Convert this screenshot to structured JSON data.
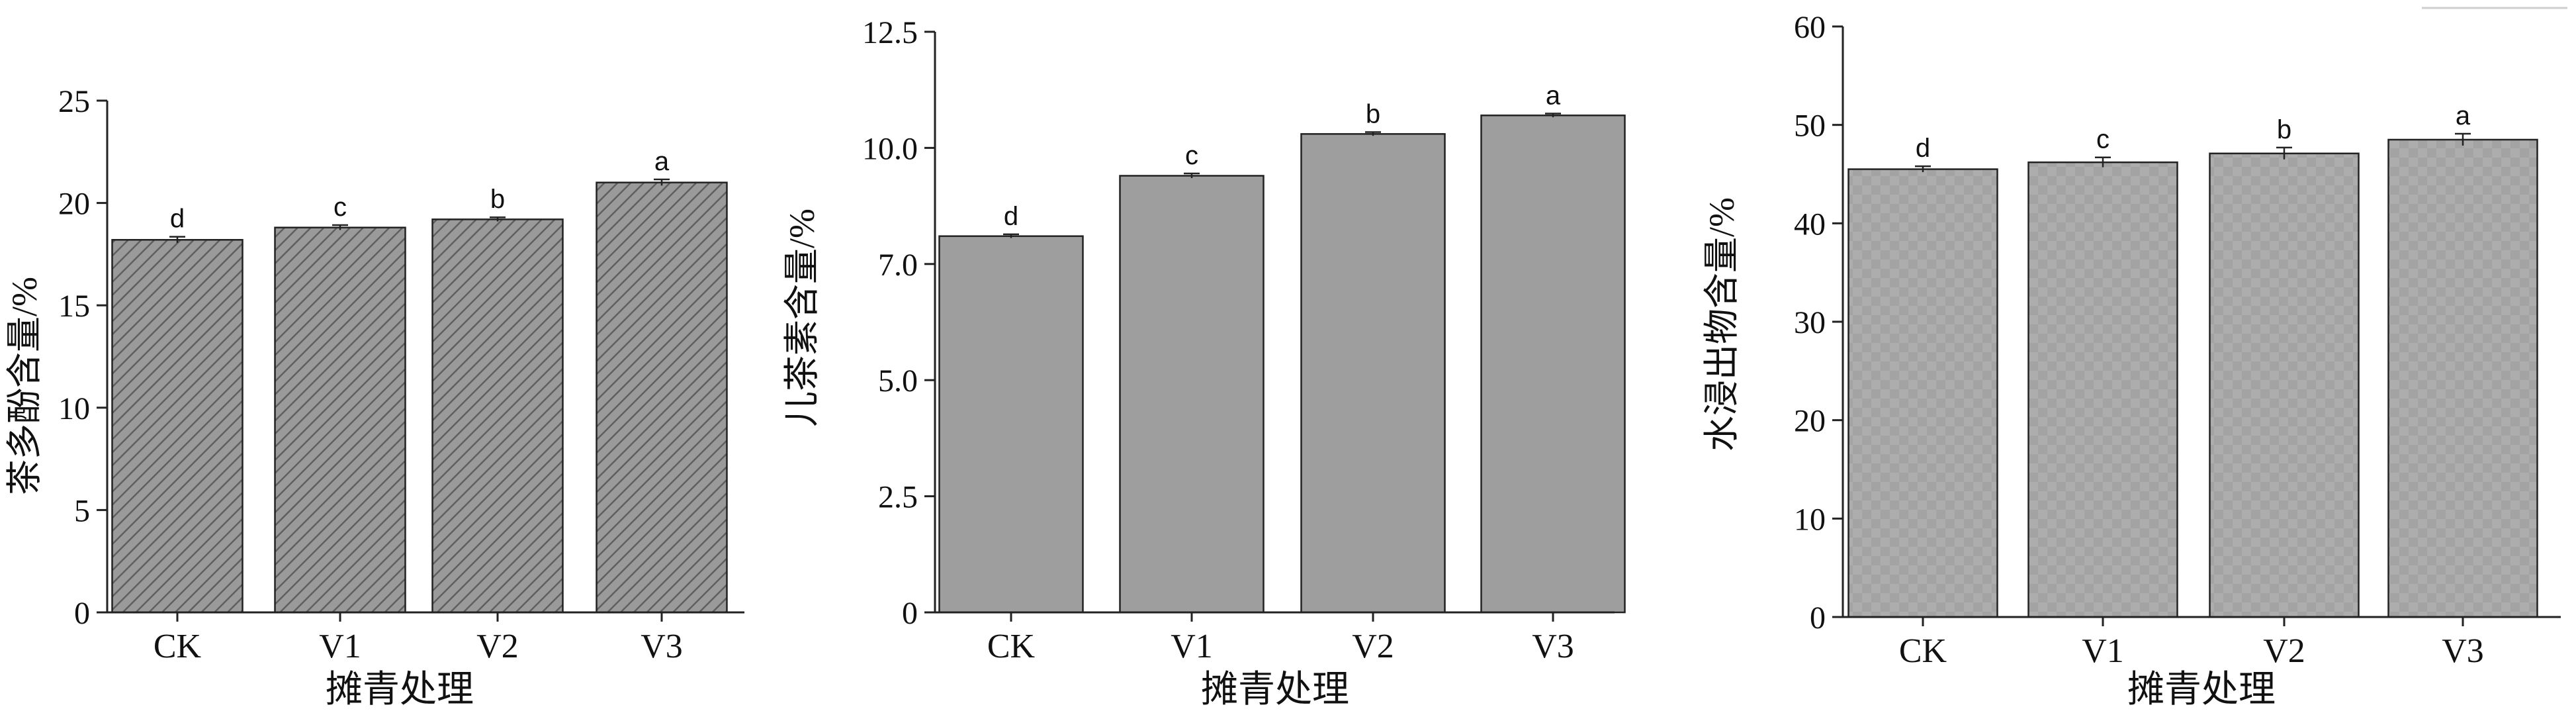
{
  "chart_data": [
    {
      "type": "bar",
      "title": "",
      "xlabel": "摊青处理",
      "ylabel": "茶多酚含量/%",
      "categories": [
        "CK",
        "V1",
        "V2",
        "V3"
      ],
      "values": [
        18.2,
        18.8,
        19.2,
        21.0
      ],
      "errors": [
        0.15,
        0.12,
        0.1,
        0.15
      ],
      "significance": [
        "d",
        "c",
        "b",
        "a"
      ],
      "ylim": [
        0,
        25
      ],
      "yticks": [
        "0",
        "5",
        "10",
        "15",
        "20",
        "25"
      ],
      "fill": "hatched",
      "colors": {
        "bar": "#9a9a9a",
        "hatch": "#5f5f5f"
      }
    },
    {
      "type": "bar",
      "title": "",
      "xlabel": "摊青处理",
      "ylabel": "儿茶素含量/%",
      "categories": [
        "CK",
        "V1",
        "V2",
        "V3"
      ],
      "values": [
        8.1,
        9.4,
        10.3,
        10.7
      ],
      "errors": [
        0.04,
        0.05,
        0.04,
        0.04
      ],
      "significance": [
        "d",
        "c",
        "b",
        "a"
      ],
      "ylim": [
        0,
        12.5
      ],
      "yticks": [
        "0",
        "2.5",
        "5.0",
        "7.0",
        "10.0",
        "12.5"
      ],
      "fill": "solid",
      "colors": {
        "bar": "#9e9e9e"
      }
    },
    {
      "type": "bar",
      "title": "",
      "xlabel": "摊青处理",
      "ylabel": "水浸出物含量/%",
      "categories": [
        "CK",
        "V1",
        "V2",
        "V3"
      ],
      "values": [
        45.5,
        46.2,
        47.1,
        48.5
      ],
      "errors": [
        0.3,
        0.5,
        0.6,
        0.6
      ],
      "significance": [
        "d",
        "c",
        "b",
        "a"
      ],
      "ylim": [
        0,
        60
      ],
      "yticks": [
        "0",
        "10",
        "20",
        "30",
        "40",
        "50",
        "60"
      ],
      "fill": "checker",
      "colors": {
        "bar": "#adadad",
        "checker": "#a3a3a3"
      }
    }
  ]
}
